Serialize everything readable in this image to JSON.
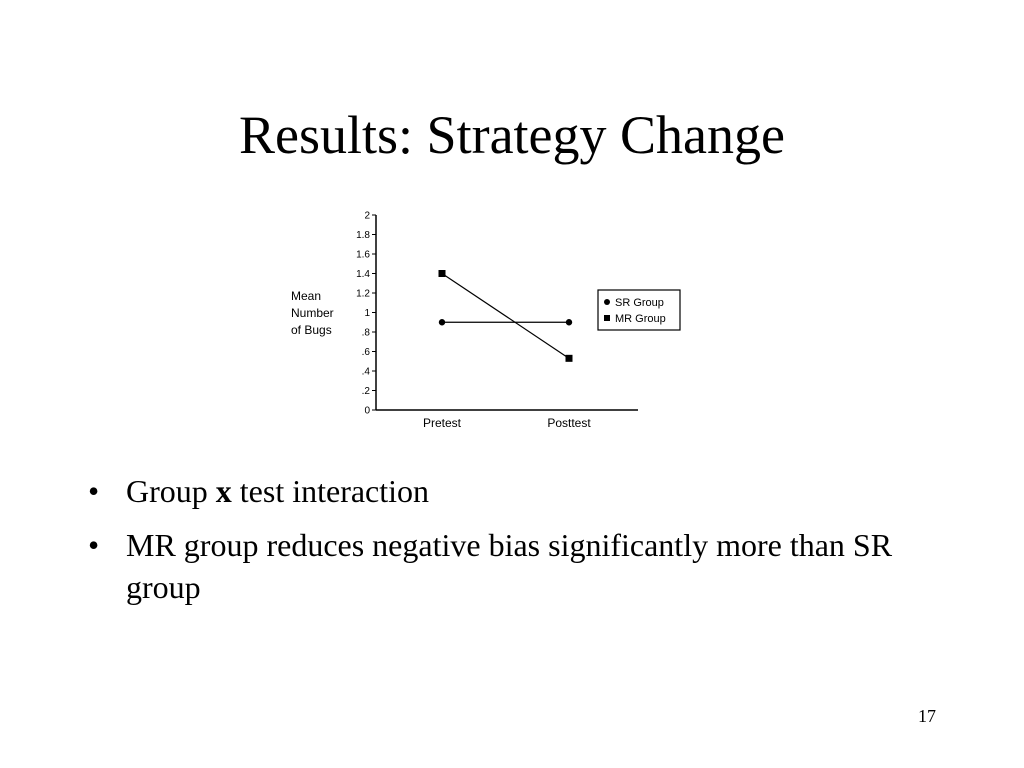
{
  "slide": {
    "title": "Results: Strategy Change",
    "page_number": "17"
  },
  "bullets": [
    {
      "parts": [
        "Group ",
        "x",
        " test interaction"
      ]
    },
    {
      "text": "MR group reduces negative bias significantly more than SR group"
    }
  ],
  "chart_data": {
    "type": "line",
    "categories": [
      "Pretest",
      "Posttest"
    ],
    "ylabel_lines": [
      "Mean",
      "Number",
      "of Bugs"
    ],
    "ylim": [
      0,
      2
    ],
    "yticks": [
      "0",
      ".2",
      ".4",
      ".6",
      ".8",
      "1",
      "1.2",
      "1.4",
      "1.6",
      "1.8",
      "2"
    ],
    "yvalues": [
      0,
      0.2,
      0.4,
      0.6,
      0.8,
      1,
      1.2,
      1.4,
      1.6,
      1.8,
      2
    ],
    "grid": false,
    "legend_position": "right",
    "series": [
      {
        "name": "SR Group",
        "marker": "circle",
        "values": [
          0.9,
          0.9
        ]
      },
      {
        "name": "MR Group",
        "marker": "square",
        "values": [
          1.4,
          0.53
        ]
      }
    ]
  }
}
